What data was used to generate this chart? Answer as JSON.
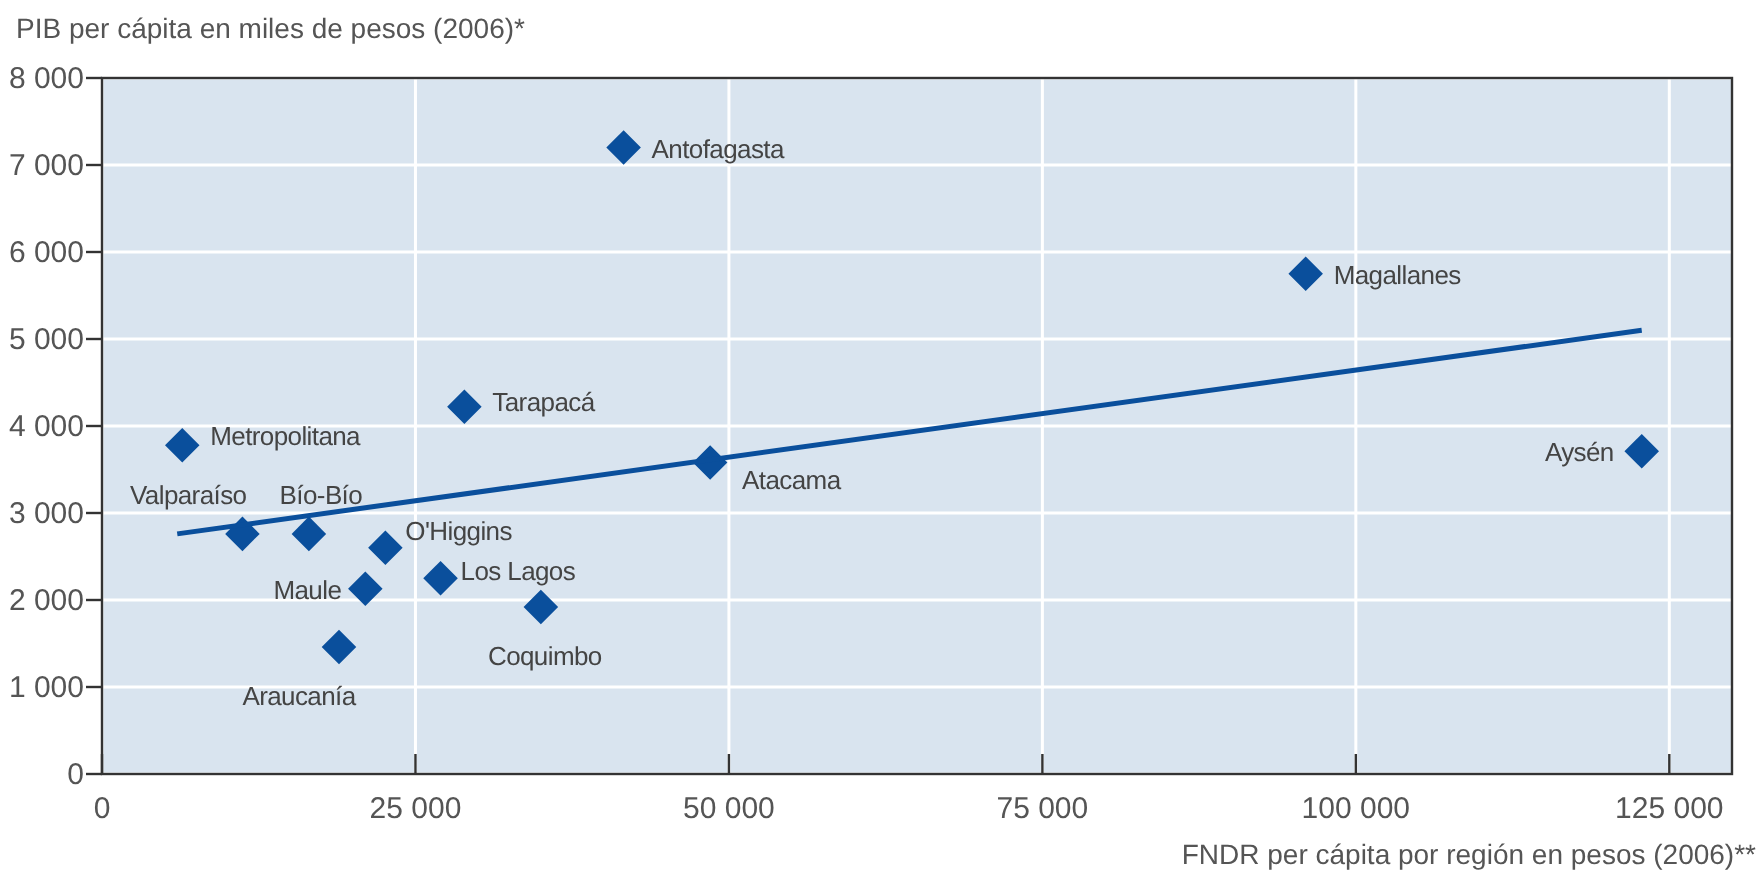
{
  "chart_data": {
    "type": "scatter",
    "ylabel": "PIB per cápita en miles de pesos (2006)*",
    "xlabel": "FNDR per cápita por región en pesos (2006)**",
    "series": [
      {
        "color": "#0a4f9c",
        "marker": "diamond",
        "x": [
          41600,
          96000,
          28900,
          6400,
          48500,
          122800,
          11200,
          16500,
          22600,
          21000,
          27000,
          35000,
          18900
        ],
        "values": [
          7200,
          5750,
          4220,
          3780,
          3580,
          3710,
          2760,
          2760,
          2600,
          2130,
          2250,
          1920,
          1460
        ]
      },
      {
        "type": "line",
        "color": "#0a4f9c",
        "x": [
          6000,
          122800
        ],
        "values": [
          2760,
          5100
        ]
      }
    ],
    "annotations": [
      {
        "text": "Antofagasta",
        "x": 41600,
        "y": 7200
      },
      {
        "text": "Magallanes",
        "x": 96000,
        "y": 5750
      },
      {
        "text": "Tarapacá",
        "x": 28900,
        "y": 4220
      },
      {
        "text": "Metropolitana",
        "x": 6400,
        "y": 3780
      },
      {
        "text": "Atacama",
        "x": 48500,
        "y": 3580
      },
      {
        "text": "Aysén",
        "x": 122800,
        "y": 3710
      },
      {
        "text": "Valparaíso",
        "x": 11200,
        "y": 2760
      },
      {
        "text": "Bío-Bío",
        "x": 16500,
        "y": 2760
      },
      {
        "text": "O'Higgins",
        "x": 22600,
        "y": 2600
      },
      {
        "text": "Maule",
        "x": 21000,
        "y": 2130
      },
      {
        "text": "Los Lagos",
        "x": 27000,
        "y": 2250
      },
      {
        "text": "Coquimbo",
        "x": 35000,
        "y": 1920
      },
      {
        "text": "Araucanía",
        "x": 18900,
        "y": 1460
      }
    ],
    "xlim": [
      0,
      130000
    ],
    "xticks": [
      {
        "value": 0,
        "label": "0"
      },
      {
        "value": 25000,
        "label": "25 000"
      },
      {
        "value": 50000,
        "label": "50 000"
      },
      {
        "value": 75000,
        "label": "75 000"
      },
      {
        "value": 100000,
        "label": "100 000"
      },
      {
        "value": 125000,
        "label": "125 000"
      }
    ],
    "ylim": [
      0,
      8000
    ],
    "yticks": [
      {
        "value": 0,
        "label": "0"
      },
      {
        "value": 1000,
        "label": "1 000"
      },
      {
        "value": 2000,
        "label": "2 000"
      },
      {
        "value": 3000,
        "label": "3 000"
      },
      {
        "value": 4000,
        "label": "4 000"
      },
      {
        "value": 5000,
        "label": "5 000"
      },
      {
        "value": 6000,
        "label": "6 000"
      },
      {
        "value": 7000,
        "label": "7 000"
      },
      {
        "value": 8000,
        "label": "8 000"
      }
    ],
    "grid": true,
    "line_style": "solid"
  }
}
